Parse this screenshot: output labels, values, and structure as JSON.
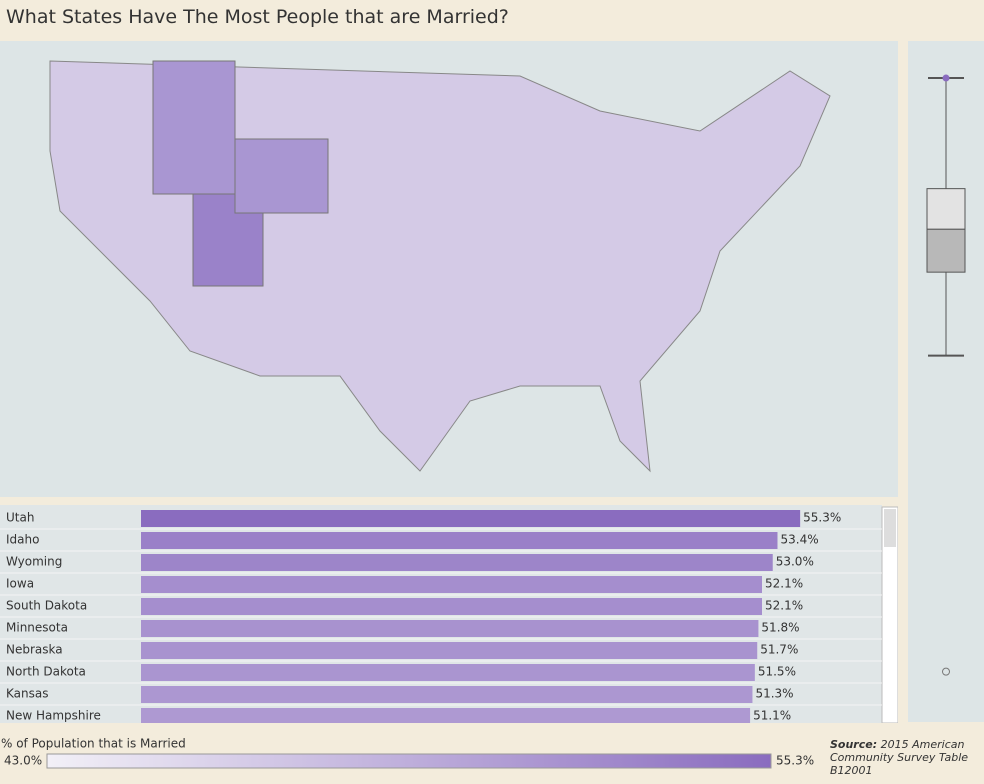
{
  "title": "What States Have The Most People that are Married?",
  "chart_data": [
    {
      "type": "bar",
      "orientation": "horizontal",
      "categories": [
        "Utah",
        "Idaho",
        "Wyoming",
        "Iowa",
        "South Dakota",
        "Minnesota",
        "Nebraska",
        "North Dakota",
        "Kansas",
        "New Hampshire"
      ],
      "values": [
        55.3,
        53.4,
        53.0,
        52.1,
        52.1,
        51.8,
        51.7,
        51.5,
        51.3,
        51.1
      ],
      "value_labels": [
        "55.3%",
        "53.4%",
        "53.0%",
        "52.1%",
        "52.1%",
        "51.8%",
        "51.7%",
        "51.5%",
        "51.3%",
        "51.1%"
      ],
      "xlim": [
        0,
        62
      ],
      "color_scale": {
        "title": "% of Population that is Married",
        "range": [
          {
            "value": 43.0,
            "label": "43.0%"
          },
          {
            "value": 55.3,
            "label": "55.3%"
          }
        ],
        "colors": [
          "#f2f0f7",
          "#8a6cbf"
        ]
      }
    },
    {
      "type": "box",
      "min": 43.0,
      "q1": 46.7,
      "median": 48.6,
      "q3": 50.4,
      "max": 55.3,
      "outliers": [
        29.0
      ],
      "ylim": [
        27.3,
        56.1
      ]
    }
  ],
  "source": {
    "label": "Source:",
    "text": "2015 American Community Survey Table B12001"
  }
}
